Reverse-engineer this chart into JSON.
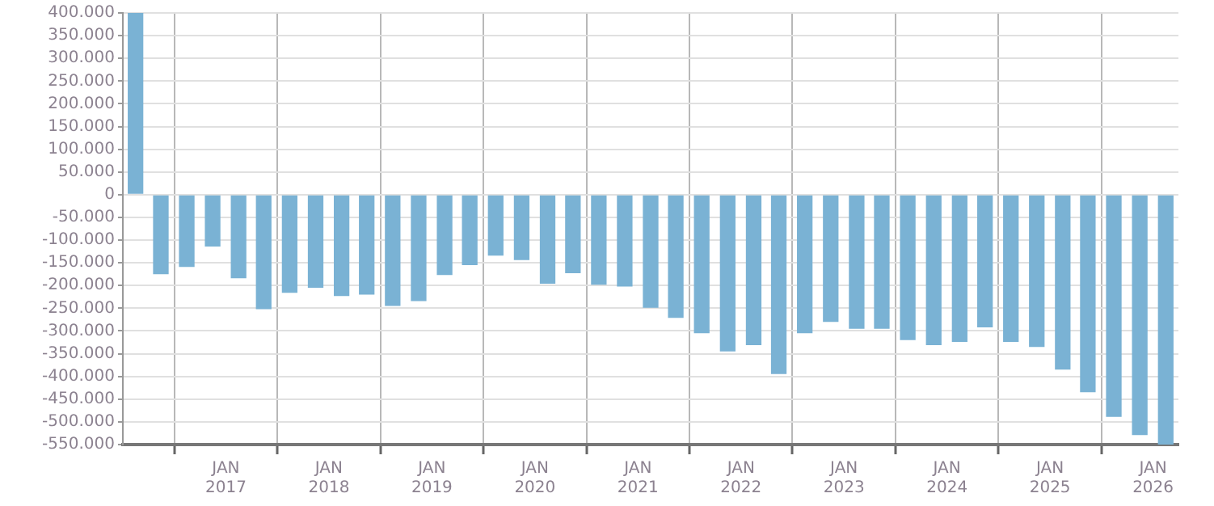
{
  "chart_data": {
    "type": "bar",
    "color": "#7ab2d4",
    "x": [
      "2016-02-15",
      "2016-05-15",
      "2016-08-15",
      "2016-11-15",
      "2017-02-15",
      "2017-05-15",
      "2017-08-15",
      "2017-11-15",
      "2018-02-15",
      "2018-05-15",
      "2018-08-15",
      "2018-11-15",
      "2019-02-15",
      "2019-05-15",
      "2019-08-15",
      "2019-11-15",
      "2020-02-15",
      "2020-05-15",
      "2020-08-15",
      "2020-11-15",
      "2021-02-15",
      "2021-05-15",
      "2021-08-15",
      "2021-11-15",
      "2022-02-15",
      "2022-05-15",
      "2022-08-15",
      "2022-11-15",
      "2023-02-15",
      "2023-05-15",
      "2023-08-15",
      "2023-11-15",
      "2024-02-15",
      "2024-05-15",
      "2024-08-15",
      "2024-11-15",
      "2025-02-15",
      "2025-05-15",
      "2025-08-15",
      "2025-11-15",
      "2026-02-15"
    ],
    "values": [
      400000,
      -175000,
      -159000,
      -114000,
      -184000,
      -252000,
      -216000,
      -205000,
      -223000,
      -220000,
      -245000,
      -234000,
      -177000,
      -155000,
      -134000,
      -144000,
      -196000,
      -173000,
      -198000,
      -202000,
      -249000,
      -271000,
      -305000,
      -345000,
      -331000,
      -395000,
      -305000,
      -280000,
      -295000,
      -295000,
      -320000,
      -331000,
      -324000,
      -292000,
      -324000,
      -335000,
      -385000,
      -435000,
      -489000,
      -529000,
      -550000
    ],
    "xlim": [
      "2016-01-01",
      "2026-04-01"
    ],
    "xticks": [
      {
        "value": "2017-01-01",
        "label": "JAN\n2017"
      },
      {
        "value": "2018-01-01",
        "label": "JAN\n2018"
      },
      {
        "value": "2019-01-01",
        "label": "JAN\n2019"
      },
      {
        "value": "2020-01-01",
        "label": "JAN\n2020"
      },
      {
        "value": "2021-01-01",
        "label": "JAN\n2021"
      },
      {
        "value": "2022-01-01",
        "label": "JAN\n2022"
      },
      {
        "value": "2023-01-01",
        "label": "JAN\n2023"
      },
      {
        "value": "2024-01-01",
        "label": "JAN\n2024"
      },
      {
        "value": "2025-01-01",
        "label": "JAN\n2025"
      },
      {
        "value": "2026-01-01",
        "label": "JAN\n2026"
      }
    ],
    "ylim": [
      -550000,
      400000
    ],
    "yticks": [
      {
        "value": 400000,
        "label": "400.000"
      },
      {
        "value": 350000,
        "label": "350.000"
      },
      {
        "value": 300000,
        "label": "300.000"
      },
      {
        "value": 250000,
        "label": "250.000"
      },
      {
        "value": 200000,
        "label": "200.000"
      },
      {
        "value": 150000,
        "label": "150.000"
      },
      {
        "value": 100000,
        "label": "100.000"
      },
      {
        "value": 50000,
        "label": "50.000"
      },
      0,
      {
        "value": -50000,
        "label": "-50.000"
      },
      {
        "value": -100000,
        "label": "-100.000"
      },
      {
        "value": -150000,
        "label": "-150.000"
      },
      {
        "value": -200000,
        "label": "-200.000"
      },
      {
        "value": -250000,
        "label": "-250.000"
      },
      {
        "value": -300000,
        "label": "-300.000"
      },
      {
        "value": -350000,
        "label": "-350.000"
      },
      {
        "value": -400000,
        "label": "-400.000"
      },
      {
        "value": -450000,
        "label": "-450.000"
      },
      {
        "value": -500000,
        "label": "-500.000"
      },
      {
        "value": -550000,
        "label": "-550.000"
      }
    ],
    "grid": true,
    "legend": false
  }
}
